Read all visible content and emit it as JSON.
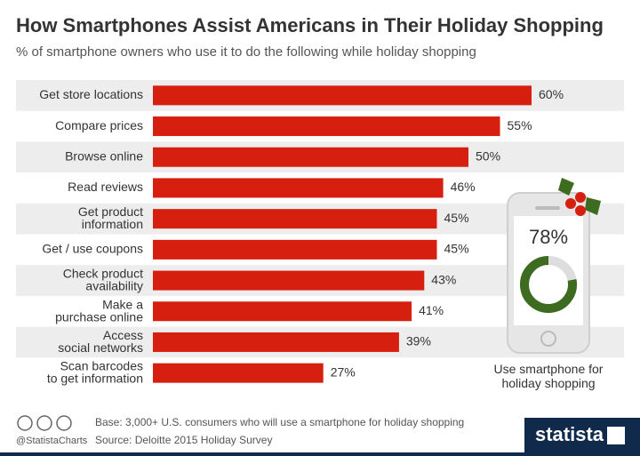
{
  "chart_data": {
    "type": "bar",
    "title": "How Smartphones Assist Americans in Their Holiday Shopping",
    "subtitle": "% of smartphone owners who use it to do the following while holiday shopping",
    "categories": [
      "Get store locations",
      "Compare prices",
      "Browse online",
      "Read reviews",
      "Get product\ninformation",
      "Get / use coupons",
      "Check product\navailability",
      "Make a\npurchase online",
      "Access\nsocial networks",
      "Scan barcodes\nto get information"
    ],
    "values": [
      60,
      55,
      50,
      46,
      45,
      45,
      43,
      41,
      39,
      27
    ],
    "value_labels": [
      "60%",
      "55%",
      "50%",
      "46%",
      "45%",
      "45%",
      "43%",
      "41%",
      "39%",
      "27%"
    ],
    "color": "#d71f0f",
    "inset": {
      "value": 78,
      "value_label": "78%",
      "caption": "Use smartphone for\nholiday shopping",
      "color": "#3d6b1f"
    },
    "footer": {
      "handle": "@StatistaCharts",
      "base": "Base: 3,000+ U.S. consumers who will use a smartphone for holiday shopping",
      "source": "Source: Deloitte 2015 Holiday Survey",
      "brand": "statista"
    }
  }
}
